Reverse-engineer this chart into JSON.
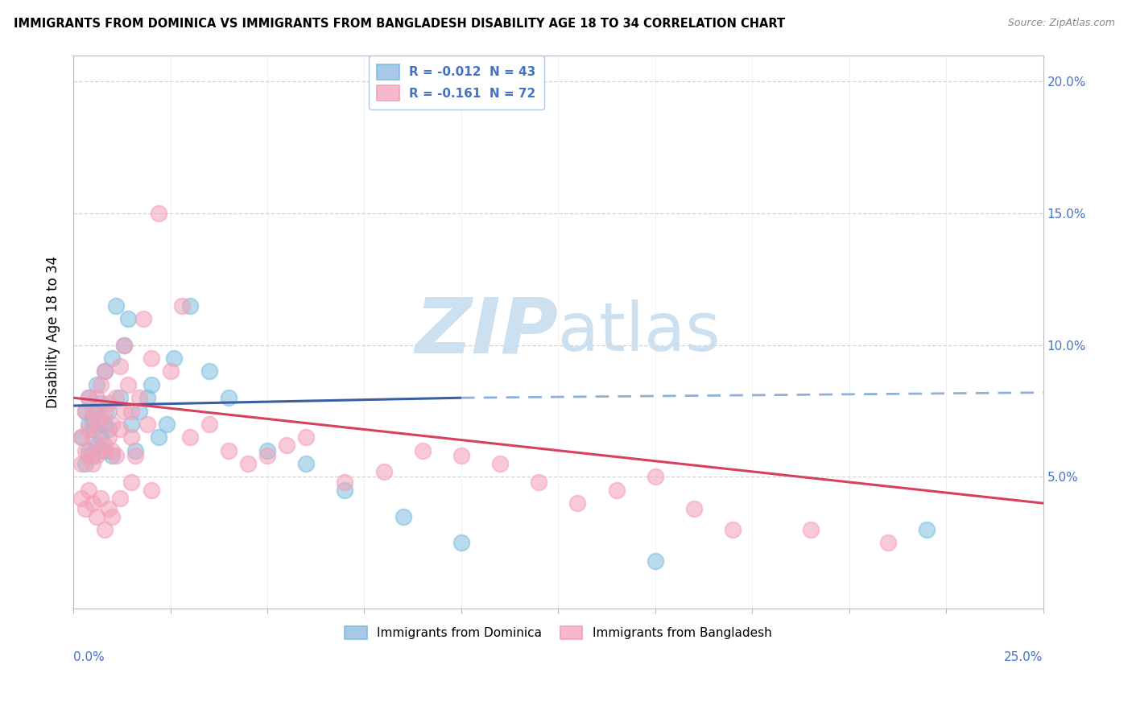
{
  "title": "IMMIGRANTS FROM DOMINICA VS IMMIGRANTS FROM BANGLADESH DISABILITY AGE 18 TO 34 CORRELATION CHART",
  "source": "Source: ZipAtlas.com",
  "ylabel": "Disability Age 18 to 34",
  "xlim": [
    0.0,
    0.25
  ],
  "ylim": [
    0.0,
    0.21
  ],
  "yticks": [
    0.05,
    0.1,
    0.15,
    0.2
  ],
  "right_ytick_labels": [
    "5.0%",
    "10.0%",
    "15.0%",
    "20.0%"
  ],
  "dominica_color": "#7fbee0",
  "bangladesh_color": "#f4a0b8",
  "trend_dominica_color": "#3a5fa0",
  "trend_bangladesh_color": "#d84060",
  "trend_dominica_dashed_color": "#90b0d8",
  "watermark_color": "#cce0f0",
  "dominica_R": -0.012,
  "bangladesh_R": -0.161,
  "dominica_N": 43,
  "bangladesh_N": 72,
  "dominica_x": [
    0.002,
    0.003,
    0.003,
    0.004,
    0.004,
    0.004,
    0.005,
    0.005,
    0.005,
    0.006,
    0.006,
    0.006,
    0.007,
    0.007,
    0.008,
    0.008,
    0.008,
    0.009,
    0.009,
    0.01,
    0.01,
    0.011,
    0.012,
    0.013,
    0.014,
    0.015,
    0.016,
    0.017,
    0.019,
    0.02,
    0.022,
    0.024,
    0.026,
    0.03,
    0.035,
    0.04,
    0.05,
    0.06,
    0.07,
    0.085,
    0.1,
    0.15,
    0.22
  ],
  "dominica_y": [
    0.065,
    0.055,
    0.075,
    0.06,
    0.07,
    0.08,
    0.058,
    0.068,
    0.072,
    0.062,
    0.075,
    0.085,
    0.065,
    0.078,
    0.07,
    0.06,
    0.09,
    0.068,
    0.075,
    0.058,
    0.095,
    0.115,
    0.08,
    0.1,
    0.11,
    0.07,
    0.06,
    0.075,
    0.08,
    0.085,
    0.065,
    0.07,
    0.095,
    0.115,
    0.09,
    0.08,
    0.06,
    0.055,
    0.045,
    0.035,
    0.025,
    0.018,
    0.03
  ],
  "bangladesh_x": [
    0.002,
    0.002,
    0.003,
    0.003,
    0.004,
    0.004,
    0.004,
    0.005,
    0.005,
    0.005,
    0.006,
    0.006,
    0.006,
    0.007,
    0.007,
    0.007,
    0.008,
    0.008,
    0.008,
    0.009,
    0.009,
    0.01,
    0.01,
    0.011,
    0.011,
    0.012,
    0.012,
    0.013,
    0.013,
    0.014,
    0.015,
    0.015,
    0.016,
    0.017,
    0.018,
    0.019,
    0.02,
    0.022,
    0.025,
    0.028,
    0.03,
    0.035,
    0.04,
    0.045,
    0.05,
    0.055,
    0.06,
    0.07,
    0.08,
    0.09,
    0.1,
    0.11,
    0.12,
    0.13,
    0.14,
    0.15,
    0.16,
    0.17,
    0.19,
    0.21,
    0.002,
    0.003,
    0.004,
    0.005,
    0.006,
    0.007,
    0.008,
    0.009,
    0.01,
    0.012,
    0.015,
    0.02
  ],
  "bangladesh_y": [
    0.065,
    0.055,
    0.06,
    0.075,
    0.058,
    0.068,
    0.08,
    0.055,
    0.065,
    0.075,
    0.058,
    0.07,
    0.08,
    0.06,
    0.072,
    0.085,
    0.062,
    0.075,
    0.09,
    0.065,
    0.078,
    0.06,
    0.07,
    0.058,
    0.08,
    0.068,
    0.092,
    0.075,
    0.1,
    0.085,
    0.065,
    0.075,
    0.058,
    0.08,
    0.11,
    0.07,
    0.095,
    0.15,
    0.09,
    0.115,
    0.065,
    0.07,
    0.06,
    0.055,
    0.058,
    0.062,
    0.065,
    0.048,
    0.052,
    0.06,
    0.058,
    0.055,
    0.048,
    0.04,
    0.045,
    0.05,
    0.038,
    0.03,
    0.03,
    0.025,
    0.042,
    0.038,
    0.045,
    0.04,
    0.035,
    0.042,
    0.03,
    0.038,
    0.035,
    0.042,
    0.048,
    0.045
  ],
  "trend_dom_x0": 0.0,
  "trend_dom_y0": 0.077,
  "trend_dom_x1": 0.1,
  "trend_dom_y1": 0.08,
  "trend_dom_dash_x0": 0.1,
  "trend_dom_dash_y0": 0.08,
  "trend_dom_dash_x1": 0.25,
  "trend_dom_dash_y1": 0.082,
  "trend_ban_x0": 0.0,
  "trend_ban_y0": 0.08,
  "trend_ban_x1": 0.25,
  "trend_ban_y1": 0.04
}
